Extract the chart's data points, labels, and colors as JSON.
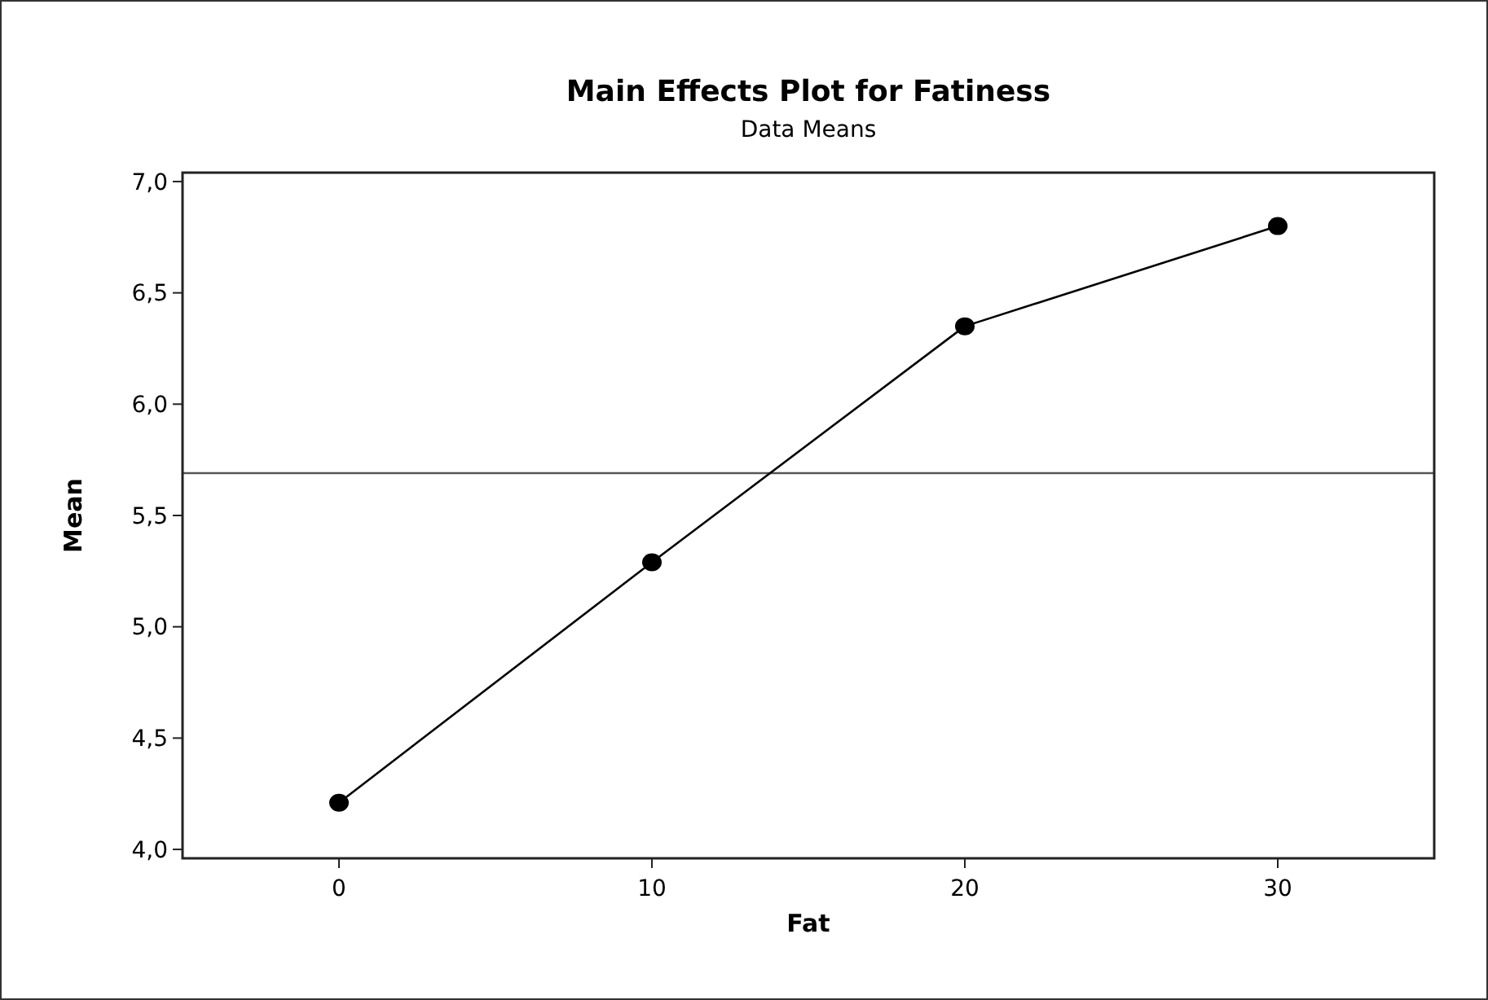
{
  "chart_data": {
    "type": "line",
    "title": "Main Effects Plot for Fatiness",
    "subtitle": "Data Means",
    "xlabel": "Fat",
    "ylabel": "Mean",
    "x": [
      0,
      10,
      20,
      30
    ],
    "series": [
      {
        "color": "#000000",
        "values": [
          4.21,
          5.29,
          6.35,
          6.8
        ]
      }
    ],
    "xlim": [
      -5,
      35
    ],
    "xticks": [
      0,
      10,
      20,
      30
    ],
    "ylim": [
      3.96,
      7.04
    ],
    "yticks": [
      {
        "value": 4,
        "label": "4,0"
      },
      {
        "value": 4.5,
        "label": "4,5"
      },
      {
        "value": 5,
        "label": "5,0"
      },
      {
        "value": 5.5,
        "label": "5,5"
      },
      {
        "value": 6,
        "label": "6,0"
      },
      {
        "value": 6.5,
        "label": "6,5"
      },
      {
        "value": 7,
        "label": "7,0"
      }
    ],
    "ref_lines": [
      {
        "axis": "y",
        "value": 5.69,
        "color": "#555555"
      }
    ],
    "marker": "circle",
    "line_style": "solid",
    "grid": false
  }
}
